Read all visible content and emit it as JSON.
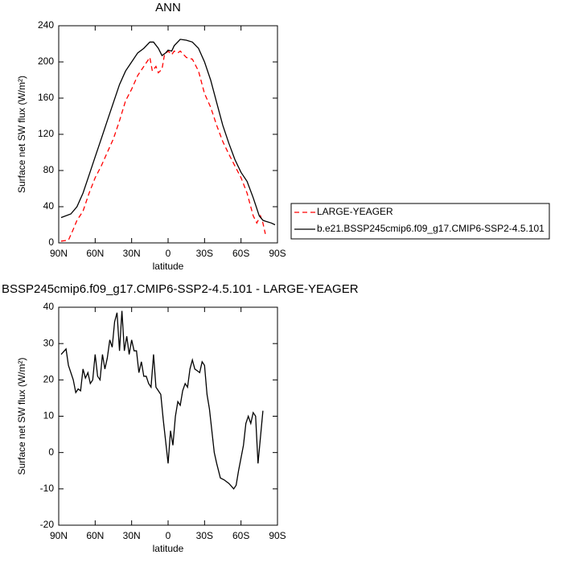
{
  "chart_data": [
    {
      "type": "line",
      "title": "ANN",
      "xlabel": "latitude",
      "ylabel": "Surface net SW flux (W/m²)",
      "xlim": [
        90,
        -90
      ],
      "ylim": [
        0,
        240
      ],
      "xticks": [
        {
          "value": 90,
          "label": "90N"
        },
        {
          "value": 60,
          "label": "60N"
        },
        {
          "value": 30,
          "label": "30N"
        },
        0,
        {
          "value": -30,
          "label": "30S"
        },
        {
          "value": -60,
          "label": "60S"
        },
        {
          "value": -90,
          "label": "90S"
        }
      ],
      "yticks": [
        0,
        40,
        80,
        120,
        160,
        200,
        240
      ],
      "legend": "right",
      "series": [
        {
          "name": "LARGE-YEAGER",
          "color": "#ff0000",
          "dashed": true,
          "x": [
            88,
            82,
            78,
            75,
            70,
            65,
            60,
            55,
            50,
            45,
            40,
            35,
            30,
            25,
            20,
            15,
            13,
            10,
            8,
            5,
            3,
            0,
            -3,
            -5,
            -8,
            -10,
            -15,
            -20,
            -25,
            -30,
            -35,
            -40,
            -45,
            -50,
            -55,
            -60,
            -65,
            -70,
            -73,
            -76,
            -78,
            -80
          ],
          "values": [
            2,
            3,
            15,
            25,
            35,
            55,
            72,
            85,
            100,
            115,
            135,
            157,
            170,
            185,
            195,
            205,
            190,
            195,
            188,
            192,
            208,
            212,
            208,
            212,
            210,
            212,
            205,
            203,
            190,
            165,
            150,
            130,
            112,
            98,
            85,
            72,
            55,
            30,
            22,
            30,
            22,
            10
          ]
        },
        {
          "name": "b.e21.BSSP245cmip6.f09_g17.CMIP6-SSP2-4.5.101",
          "color": "#000000",
          "dashed": false,
          "x": [
            88,
            80,
            75,
            70,
            65,
            60,
            55,
            50,
            45,
            40,
            35,
            30,
            25,
            20,
            15,
            12,
            8,
            5,
            2,
            0,
            -3,
            -5,
            -10,
            -15,
            -20,
            -25,
            -30,
            -35,
            -40,
            -45,
            -50,
            -55,
            -60,
            -65,
            -70,
            -75,
            -78,
            -80,
            -85,
            -88
          ],
          "values": [
            28,
            32,
            40,
            55,
            75,
            95,
            115,
            135,
            155,
            175,
            190,
            200,
            210,
            215,
            222,
            222,
            215,
            207,
            210,
            213,
            212,
            218,
            225,
            224,
            222,
            215,
            200,
            180,
            155,
            130,
            110,
            92,
            78,
            68,
            50,
            30,
            25,
            24,
            22,
            20
          ]
        }
      ]
    },
    {
      "type": "line",
      "title": "BSSP245cmip6.f09_g17.CMIP6-SSP2-4.5.101 - LARGE-YEAGER",
      "xlabel": "latitude",
      "ylabel": "Surface net SW flux (W/m²)",
      "xlim": [
        90,
        -90
      ],
      "ylim": [
        -20,
        40
      ],
      "xticks": [
        {
          "value": 90,
          "label": "90N"
        },
        {
          "value": 60,
          "label": "60N"
        },
        {
          "value": 30,
          "label": "30N"
        },
        0,
        {
          "value": -30,
          "label": "30S"
        },
        {
          "value": -60,
          "label": "60S"
        },
        {
          "value": -90,
          "label": "90S"
        }
      ],
      "yticks": [
        -20,
        -10,
        0,
        10,
        20,
        30,
        40
      ],
      "series": [
        {
          "color": "#000000",
          "dashed": false,
          "x": [
            88,
            84,
            82,
            78,
            76,
            74,
            72,
            70,
            68,
            66,
            64,
            62,
            60,
            58,
            56,
            54,
            52,
            50,
            48,
            46,
            44,
            42,
            40,
            38,
            36,
            34,
            32,
            30,
            28,
            26,
            24,
            22,
            20,
            18,
            16,
            14,
            12,
            10,
            8,
            6,
            4,
            2,
            0,
            -2,
            -4,
            -6,
            -8,
            -10,
            -12,
            -14,
            -16,
            -18,
            -20,
            -22,
            -24,
            -26,
            -28,
            -30,
            -32,
            -34,
            -36,
            -38,
            -40,
            -43,
            -46,
            -50,
            -54,
            -56,
            -58,
            -62,
            -64,
            -66,
            -68,
            -70,
            -72,
            -74,
            -78
          ],
          "values": [
            27,
            28.5,
            24,
            20,
            16.5,
            17.5,
            17,
            23,
            20.5,
            22,
            19,
            20,
            27,
            21,
            20,
            27,
            23,
            26,
            31,
            29,
            36,
            38.5,
            28,
            39,
            28,
            32,
            27,
            31,
            28,
            28,
            22,
            25,
            21,
            21,
            19,
            18,
            27,
            18,
            17,
            16,
            9,
            3,
            -3,
            6,
            2,
            10,
            14,
            13,
            17,
            19,
            18,
            23,
            25.5,
            23,
            22.5,
            22,
            25,
            24,
            16,
            12,
            6,
            0,
            -3,
            -7,
            -7.5,
            -8.5,
            -10,
            -9,
            -5,
            2,
            8,
            10,
            8,
            11,
            10,
            -3,
            11.5
          ]
        }
      ]
    }
  ]
}
